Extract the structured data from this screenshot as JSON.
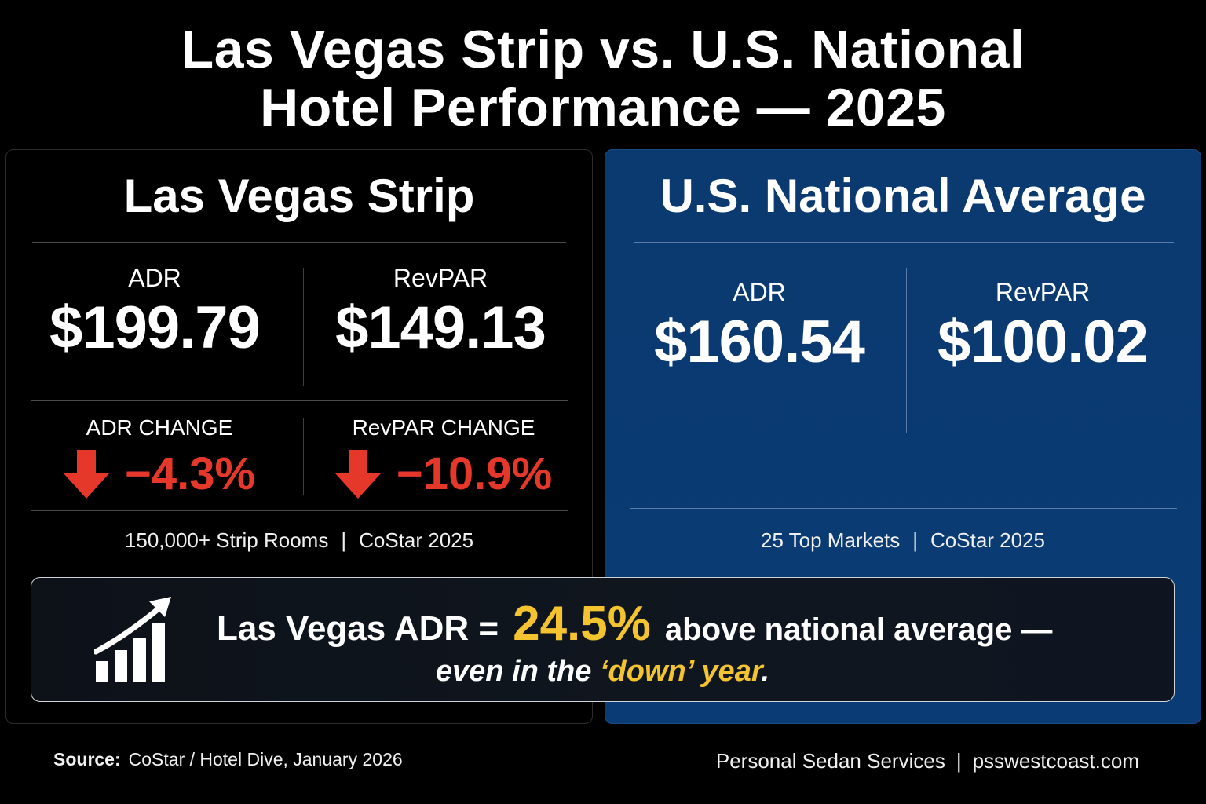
{
  "title": {
    "line1": "Las Vegas Strip vs. U.S. National",
    "line2": "Hotel Performance — 2025"
  },
  "las_vegas": {
    "heading": "Las Vegas Strip",
    "adr_label": "ADR",
    "adr_value": "$199.79",
    "revpar_label": "RevPAR",
    "revpar_value": "$149.13",
    "adr_change_label": "ADR CHANGE",
    "adr_change_value": "−4.3%",
    "revpar_change_label": "RevPAR CHANGE",
    "revpar_change_value": "−10.9%",
    "footer_left": "150,000+ Strip Rooms",
    "footer_right": "CoStar 2025"
  },
  "national": {
    "heading": "U.S. National Average",
    "adr_label": "ADR",
    "adr_value": "$160.54",
    "revpar_label": "RevPAR",
    "revpar_value": "$100.02",
    "footer_left": "25 Top Markets",
    "footer_right": "CoStar 2025"
  },
  "callout": {
    "prefix": "Las Vegas ADR =",
    "percent": "24.5%",
    "suffix": "above national average —",
    "line2_a": "even in the",
    "line2_highlight": "‘down’ year",
    "line2_b": ".",
    "icon": "growth-chart-icon"
  },
  "footer": {
    "source_label": "Source:",
    "source_text": "CoStar / Hotel Dive, January 2026",
    "brand_name": "Personal Sedan Services",
    "brand_url": "psswestcoast.com"
  },
  "colors": {
    "background": "#000000",
    "national_panel": "#0a3b74",
    "decline_red": "#e5372a",
    "highlight_gold": "#f4c430"
  }
}
